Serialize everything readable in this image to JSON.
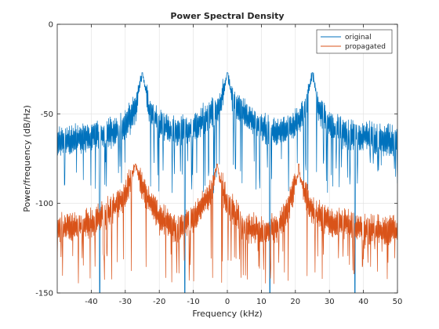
{
  "chart_data": {
    "type": "line",
    "title": "Power Spectral Density",
    "xlabel": "Frequency (kHz)",
    "ylabel": "Power/frequency (dB/Hz)",
    "xlim": [
      -50,
      50
    ],
    "ylim": [
      -150,
      0
    ],
    "xticks": [
      -40,
      -30,
      -20,
      -10,
      0,
      10,
      20,
      30,
      40,
      50
    ],
    "yticks": [
      0,
      -50,
      -100,
      -150
    ],
    "grid": true,
    "legend_position": "top-right",
    "series": [
      {
        "name": "original",
        "color": "#0072BD",
        "peaks_khz": [
          -25,
          0,
          25
        ],
        "peak_level_db": -27,
        "floor_envelope_db": [
          -64,
          -70
        ],
        "floor_dips_db": -95,
        "deep_nulls_khz": [
          -37.5,
          -12.5,
          12.5,
          37.5
        ],
        "points": [
          [
            -50,
            -66
          ],
          [
            -45,
            -64
          ],
          [
            -40,
            -63
          ],
          [
            -35,
            -61
          ],
          [
            -30,
            -57
          ],
          [
            -27,
            -47
          ],
          [
            -25,
            -27
          ],
          [
            -23,
            -47
          ],
          [
            -20,
            -56
          ],
          [
            -15,
            -60
          ],
          [
            -10,
            -58
          ],
          [
            -5,
            -50
          ],
          [
            -2,
            -45
          ],
          [
            0,
            -27
          ],
          [
            2,
            -45
          ],
          [
            5,
            -50
          ],
          [
            10,
            -58
          ],
          [
            15,
            -60
          ],
          [
            20,
            -56
          ],
          [
            23,
            -47
          ],
          [
            25,
            -27
          ],
          [
            27,
            -47
          ],
          [
            30,
            -57
          ],
          [
            35,
            -61
          ],
          [
            40,
            -63
          ],
          [
            45,
            -64
          ],
          [
            50,
            -66
          ]
        ]
      },
      {
        "name": "propagated",
        "color": "#D95319",
        "peaks_khz": [
          -27,
          -3,
          21
        ],
        "peak_level_db": -78,
        "floor_envelope_db": [
          -113,
          -118
        ],
        "floor_dips_db": -145,
        "points": [
          [
            -50,
            -114
          ],
          [
            -45,
            -113
          ],
          [
            -40,
            -111
          ],
          [
            -35,
            -105
          ],
          [
            -30,
            -96
          ],
          [
            -28,
            -84
          ],
          [
            -27,
            -78
          ],
          [
            -26,
            -84
          ],
          [
            -24,
            -95
          ],
          [
            -20,
            -108
          ],
          [
            -15,
            -115
          ],
          [
            -10,
            -108
          ],
          [
            -5,
            -95
          ],
          [
            -4,
            -88
          ],
          [
            -3,
            -78
          ],
          [
            -2,
            -88
          ],
          [
            0,
            -100
          ],
          [
            5,
            -113
          ],
          [
            10,
            -116
          ],
          [
            15,
            -113
          ],
          [
            18,
            -102
          ],
          [
            20,
            -88
          ],
          [
            21,
            -82
          ],
          [
            22,
            -90
          ],
          [
            25,
            -104
          ],
          [
            30,
            -110
          ],
          [
            40,
            -114
          ],
          [
            50,
            -116
          ]
        ]
      }
    ]
  }
}
